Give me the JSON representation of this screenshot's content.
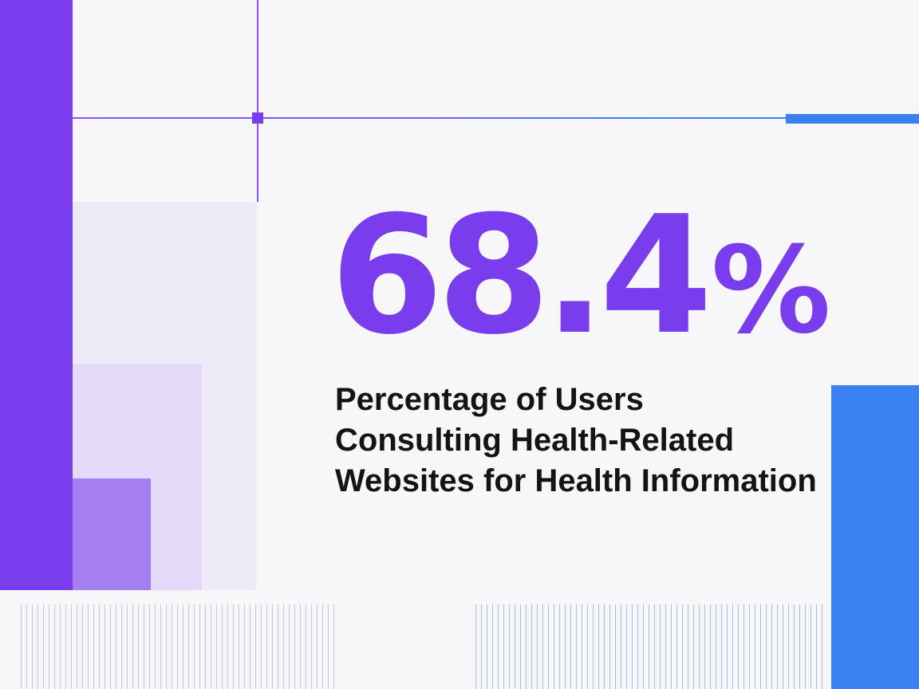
{
  "stat": {
    "value": "68.4",
    "unit": "%",
    "caption_lines": [
      "Percentage of Users",
      "Consulting Health-Related",
      "Websites for Health Information"
    ]
  },
  "colors": {
    "background": "#f7f7fa",
    "primary_purple": "#7a3ded",
    "accent_blue": "#3a80f0",
    "text": "#141414"
  }
}
